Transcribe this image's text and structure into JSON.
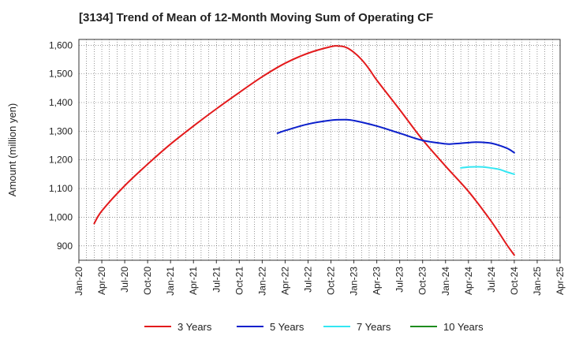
{
  "chart_data": {
    "type": "line",
    "title": "[3134]  Trend of Mean of 12-Month Moving Sum of Operating CF",
    "ylabel": "Amount (million yen)",
    "xlabel": "",
    "ylim": [
      850,
      1620
    ],
    "yticks": [
      900,
      1000,
      1100,
      1200,
      1300,
      1400,
      1500,
      1600
    ],
    "ytick_labels": [
      "900",
      "1,000",
      "1,100",
      "1,200",
      "1,300",
      "1,400",
      "1,500",
      "1,600"
    ],
    "x_start": "2020-01",
    "x_end": "2025-04",
    "xtick_labels": [
      "Jan-20",
      "Apr-20",
      "Jul-20",
      "Oct-20",
      "Jan-21",
      "Apr-21",
      "Jul-21",
      "Oct-21",
      "Jan-22",
      "Apr-22",
      "Jul-22",
      "Oct-22",
      "Jan-23",
      "Apr-23",
      "Jul-23",
      "Oct-23",
      "Jan-24",
      "Apr-24",
      "Jul-24",
      "Oct-24",
      "Jan-25",
      "Apr-25"
    ],
    "grid": true,
    "legend_position": "bottom",
    "series": [
      {
        "name": "3 Years",
        "color": "#e31a1c",
        "points": [
          [
            "Mar-20",
            978
          ],
          [
            "Apr-20",
            1022
          ],
          [
            "Jul-20",
            1110
          ],
          [
            "Oct-20",
            1185
          ],
          [
            "Jan-21",
            1255
          ],
          [
            "Apr-21",
            1318
          ],
          [
            "Jul-21",
            1378
          ],
          [
            "Oct-21",
            1435
          ],
          [
            "Jan-22",
            1490
          ],
          [
            "Apr-22",
            1537
          ],
          [
            "Jul-22",
            1572
          ],
          [
            "Oct-22",
            1595
          ],
          [
            "Nov-22",
            1597
          ],
          [
            "Dec-22",
            1592
          ],
          [
            "Jan-23",
            1575
          ],
          [
            "Feb-23",
            1550
          ],
          [
            "Mar-23",
            1517
          ],
          [
            "Apr-23",
            1478
          ],
          [
            "Jul-23",
            1375
          ],
          [
            "Oct-23",
            1270
          ],
          [
            "Jan-24",
            1178
          ],
          [
            "Apr-24",
            1090
          ],
          [
            "Jul-24",
            985
          ],
          [
            "Sep-24",
            905
          ],
          [
            "Oct-24",
            868
          ]
        ]
      },
      {
        "name": "5 Years",
        "color": "#0b1fcc",
        "points": [
          [
            "Mar-22",
            1293
          ],
          [
            "Apr-22",
            1302
          ],
          [
            "Jul-22",
            1325
          ],
          [
            "Oct-22",
            1338
          ],
          [
            "Dec-22",
            1340
          ],
          [
            "Jan-23",
            1337
          ],
          [
            "Apr-23",
            1318
          ],
          [
            "Jul-23",
            1293
          ],
          [
            "Oct-23",
            1268
          ],
          [
            "Jan-24",
            1256
          ],
          [
            "Feb-24",
            1256
          ],
          [
            "Apr-24",
            1260
          ],
          [
            "May-24",
            1262
          ],
          [
            "Jul-24",
            1258
          ],
          [
            "Sep-24",
            1241
          ],
          [
            "Oct-24",
            1225
          ]
        ]
      },
      {
        "name": "7 Years",
        "color": "#33e6f2",
        "points": [
          [
            "Mar-24",
            1172
          ],
          [
            "Apr-24",
            1175
          ],
          [
            "May-24",
            1176
          ],
          [
            "Jun-24",
            1175
          ],
          [
            "Aug-24",
            1167
          ],
          [
            "Sep-24",
            1158
          ],
          [
            "Oct-24",
            1150
          ]
        ]
      },
      {
        "name": "10 Years",
        "color": "#1e8c1e",
        "points": []
      }
    ]
  }
}
